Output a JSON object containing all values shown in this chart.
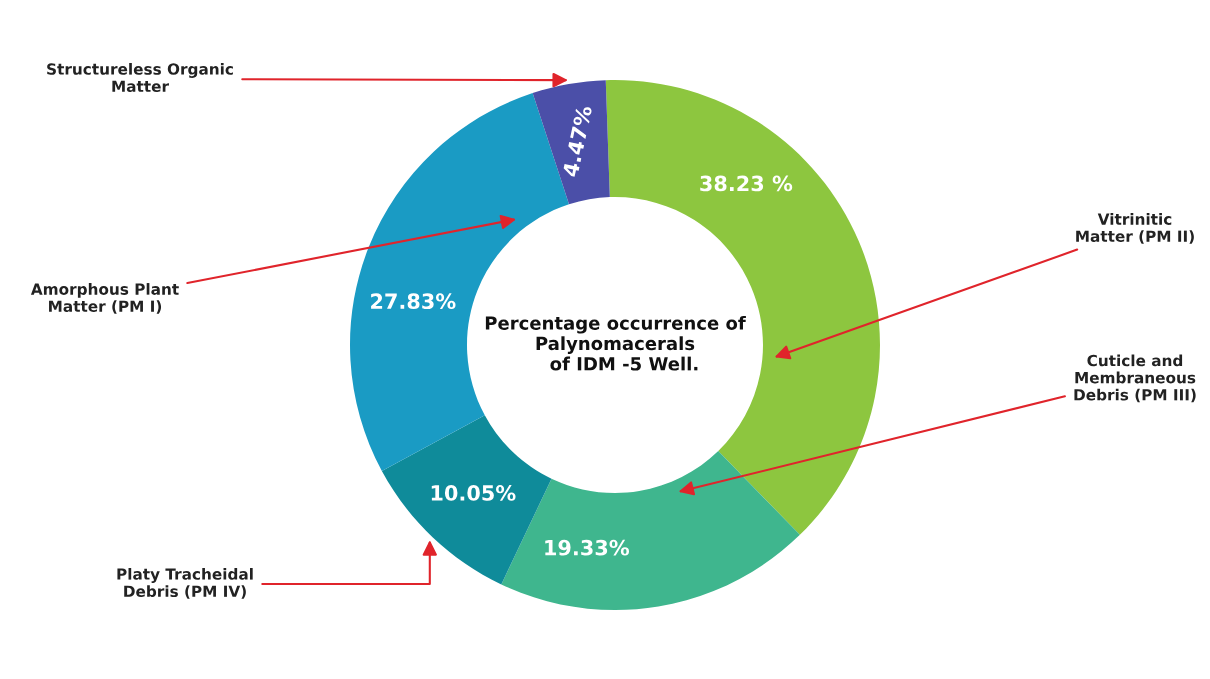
{
  "chart_data": {
    "type": "donut",
    "title": "Percentage occurrence of\nPalynomacerals\n   of IDM -5 Well.",
    "categories": [
      "Vitrinitic\nMatter (PM II)",
      "Cuticle and\nMembraneous\nDebris (PM III)",
      "Platy Tracheidal\nDebris (PM IV)",
      "Amorphous Plant\nMatter (PM I)",
      "Structureless Organic\nMatter"
    ],
    "values": [
      38.23,
      19.33,
      10.05,
      27.83,
      4.47
    ],
    "colors": [
      "#8dc63f",
      "#3fb68e",
      "#0f8b9a",
      "#1a9bc4",
      "#4b4fa8"
    ],
    "value_labels": [
      "38.23 %",
      "19.33%",
      "10.05%",
      "27.83%",
      "4.47%"
    ],
    "legend": false
  }
}
